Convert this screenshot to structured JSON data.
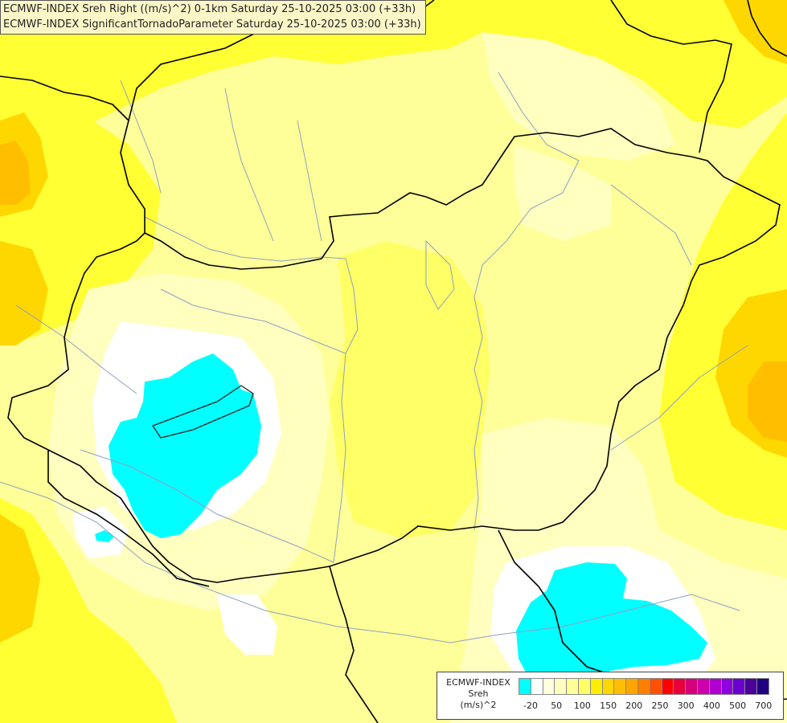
{
  "header": {
    "line1": "ECMWF-INDEX Sreh Right ((m/s)^2) 0-1km Saturday 25-10-2025 03:00 (+33h)",
    "line2": "ECMWF-INDEX SignificantTornadoParameter Saturday 25-10-2025 03:00 (+33h)"
  },
  "legend": {
    "source": "ECMWF-INDEX",
    "variable": "Sreh",
    "unit": "(m/s)^2",
    "colors": [
      "#00ffff",
      "#ffffff",
      "#ffffe0",
      "#ffffc0",
      "#ffff99",
      "#ffff66",
      "#ffee00",
      "#ffd700",
      "#ffbf00",
      "#ffa500",
      "#ff7f00",
      "#ff5000",
      "#ff0000",
      "#e8003c",
      "#d6007a",
      "#cc00aa",
      "#b000d0",
      "#9000e0",
      "#6a00d0",
      "#4b0099",
      "#1e0080"
    ],
    "ticks": [
      "-20",
      "50",
      "100",
      "150",
      "200",
      "250",
      "300",
      "400",
      "500",
      "700"
    ]
  },
  "fields": {
    "colors": {
      "background": "#ffff99",
      "pale": "#ffffc0",
      "white": "#ffffff",
      "yellow": "#ffff33",
      "gold": "#ffd700",
      "orange": "#ffbf00",
      "cyan": "#00ffff",
      "border": "#000000",
      "river": "#8ea0c0"
    }
  }
}
